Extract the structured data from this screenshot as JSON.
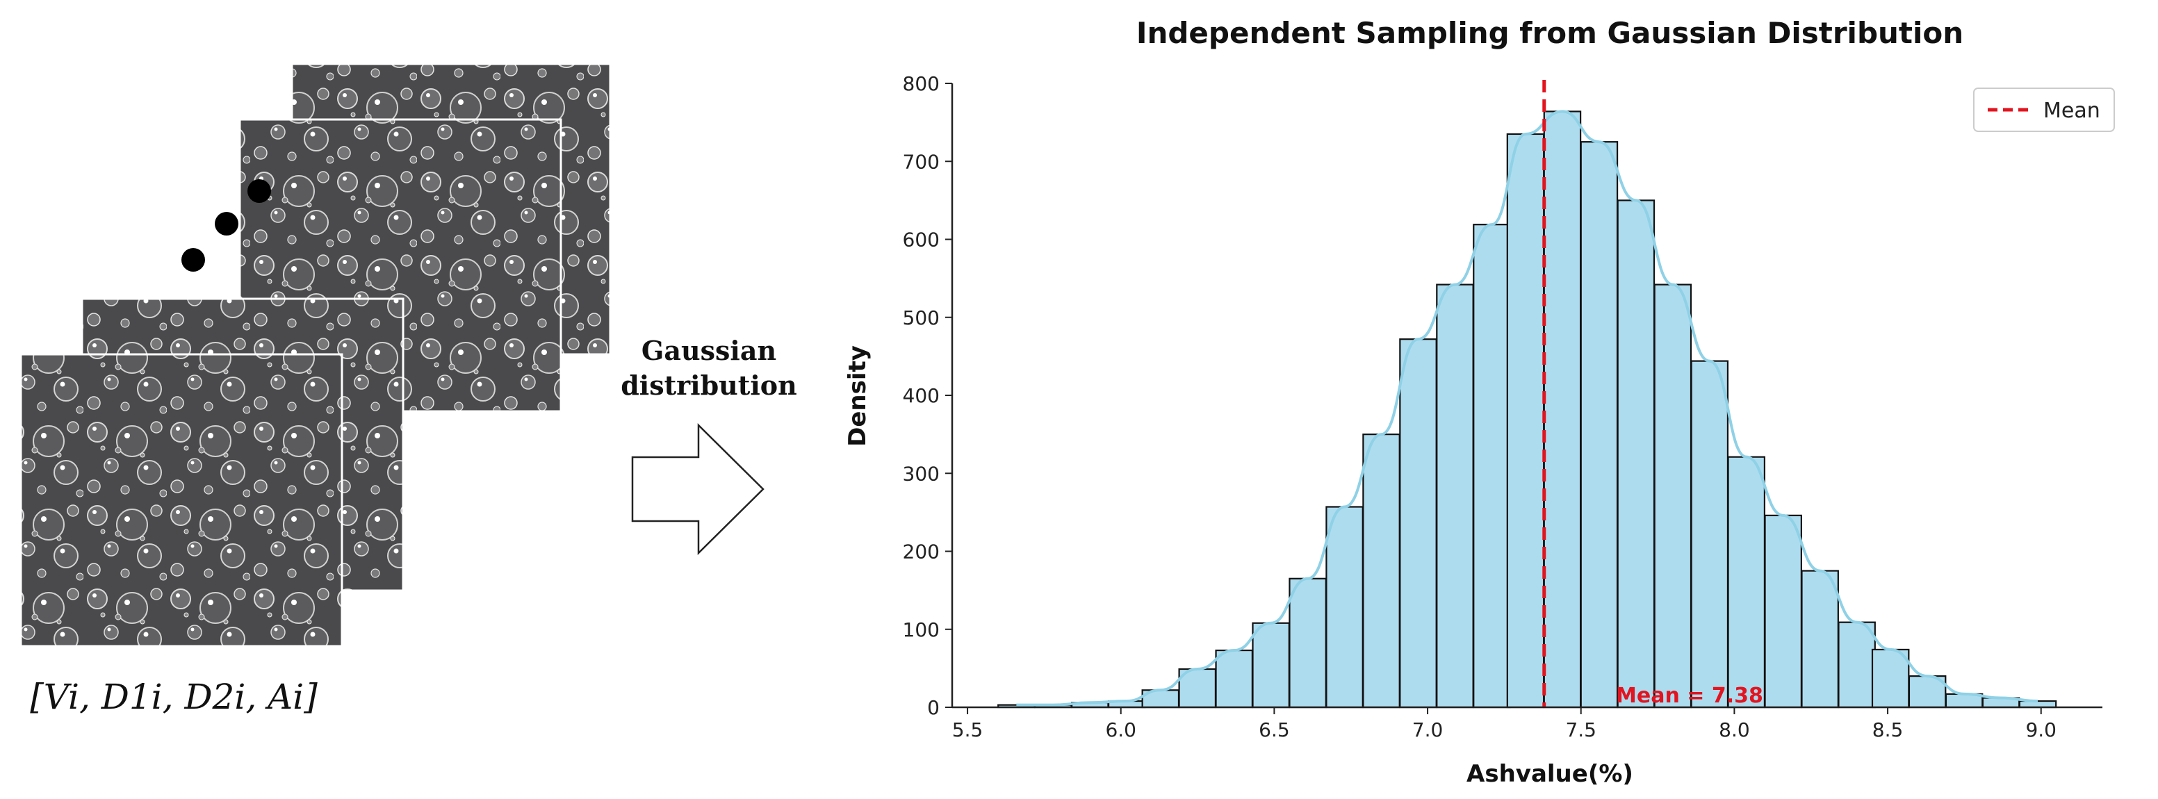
{
  "diagram": {
    "arrow_label_line1": "Gaussian",
    "arrow_label_line2": "distribution",
    "vector_label": "[Vi, D1i, D2i, Ai]"
  },
  "chart_data": {
    "type": "bar",
    "title": "Independent Sampling from Gaussian Distribution",
    "xlabel": "Ashvalue(%)",
    "ylabel": "Density",
    "xlim": [
      5.45,
      9.2
    ],
    "ylim": [
      0,
      800
    ],
    "xticks": [
      "5.5",
      "6.0",
      "6.5",
      "7.0",
      "7.5",
      "8.0",
      "8.5",
      "9.0"
    ],
    "yticks": [
      "0",
      "100",
      "200",
      "300",
      "400",
      "500",
      "600",
      "700",
      "800"
    ],
    "bin_width": 0.1186,
    "bin_starts": [
      5.6,
      5.72,
      5.84,
      5.96,
      6.07,
      6.19,
      6.31,
      6.43,
      6.55,
      6.67,
      6.79,
      6.91,
      7.03,
      7.15,
      7.26,
      7.38,
      7.5,
      7.62,
      7.74,
      7.86,
      7.98,
      8.1,
      8.22,
      8.34,
      8.45,
      8.57,
      8.69,
      8.81,
      8.93
    ],
    "values": [
      3,
      3,
      6,
      8,
      22,
      49,
      73,
      108,
      165,
      257,
      350,
      472,
      542,
      619,
      735,
      764,
      725,
      650,
      542,
      444,
      321,
      246,
      175,
      109,
      74,
      40,
      17,
      12,
      8
    ],
    "bar_color": "#aedcef",
    "bar_edge_color": "#111111",
    "kde_color": "#8fd1e6",
    "mean": 7.38,
    "mean_line_color": "#e1141f",
    "mean_label": "Mean = 7.38",
    "legend": {
      "position": "top-right",
      "label": "Mean"
    },
    "grid": false
  }
}
